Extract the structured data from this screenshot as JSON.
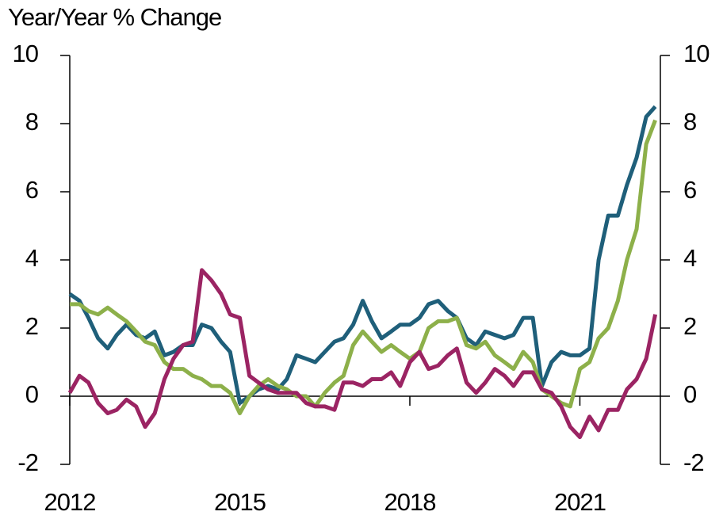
{
  "chart_data": {
    "type": "line",
    "y_label": "Year/Year % Change",
    "x": [
      2012,
      2012.17,
      2012.33,
      2012.5,
      2012.67,
      2012.83,
      2013,
      2013.17,
      2013.33,
      2013.5,
      2013.67,
      2013.83,
      2014,
      2014.17,
      2014.33,
      2014.5,
      2014.67,
      2014.83,
      2015,
      2015.17,
      2015.33,
      2015.5,
      2015.67,
      2015.83,
      2016,
      2016.17,
      2016.33,
      2016.5,
      2016.67,
      2016.83,
      2017,
      2017.17,
      2017.33,
      2017.5,
      2017.67,
      2017.83,
      2018,
      2018.17,
      2018.33,
      2018.5,
      2018.67,
      2018.83,
      2019,
      2019.17,
      2019.33,
      2019.5,
      2019.67,
      2019.83,
      2020,
      2020.17,
      2020.33,
      2020.5,
      2020.67,
      2020.83,
      2021,
      2021.17,
      2021.33,
      2021.5,
      2021.67,
      2021.83,
      2022,
      2022.17,
      2022.33
    ],
    "series": [
      {
        "color": "#1f5f7a",
        "values": [
          3.0,
          2.8,
          2.3,
          1.7,
          1.4,
          1.8,
          2.1,
          1.8,
          1.7,
          1.9,
          1.2,
          1.3,
          1.5,
          1.5,
          2.1,
          2.0,
          1.6,
          1.3,
          -0.2,
          0.0,
          0.2,
          0.3,
          0.2,
          0.5,
          1.2,
          1.1,
          1.0,
          1.3,
          1.6,
          1.7,
          2.1,
          2.8,
          2.2,
          1.7,
          1.9,
          2.1,
          2.1,
          2.3,
          2.7,
          2.8,
          2.5,
          2.3,
          1.7,
          1.5,
          1.9,
          1.8,
          1.7,
          1.8,
          2.3,
          2.3,
          0.3,
          1.0,
          1.3,
          1.2,
          1.2,
          1.4,
          4.0,
          5.3,
          5.3,
          6.2,
          7.0,
          8.2,
          8.5
        ]
      },
      {
        "color": "#8db04a",
        "values": [
          2.7,
          2.7,
          2.5,
          2.4,
          2.6,
          2.4,
          2.2,
          1.9,
          1.6,
          1.5,
          1.0,
          0.8,
          0.8,
          0.6,
          0.5,
          0.3,
          0.3,
          0.1,
          -0.5,
          0.0,
          0.3,
          0.5,
          0.3,
          0.2,
          0.0,
          0.0,
          -0.3,
          0.1,
          0.4,
          0.6,
          1.5,
          1.9,
          1.6,
          1.3,
          1.5,
          1.3,
          1.1,
          1.3,
          2.0,
          2.2,
          2.2,
          2.3,
          1.5,
          1.4,
          1.6,
          1.2,
          1.0,
          0.8,
          1.3,
          1.0,
          0.2,
          0.0,
          -0.2,
          -0.3,
          0.8,
          1.0,
          1.7,
          2.0,
          2.8,
          4.0,
          4.9,
          7.4,
          8.1
        ]
      },
      {
        "color": "#9b2463",
        "values": [
          0.1,
          0.6,
          0.4,
          -0.2,
          -0.5,
          -0.4,
          -0.1,
          -0.3,
          -0.9,
          -0.5,
          0.5,
          1.1,
          1.5,
          1.6,
          3.7,
          3.4,
          3.0,
          2.4,
          2.3,
          0.6,
          0.4,
          0.2,
          0.1,
          0.1,
          0.1,
          -0.2,
          -0.3,
          -0.3,
          -0.4,
          0.4,
          0.4,
          0.3,
          0.5,
          0.5,
          0.7,
          0.3,
          1.0,
          1.3,
          0.8,
          0.9,
          1.2,
          1.4,
          0.4,
          0.1,
          0.4,
          0.8,
          0.6,
          0.3,
          0.7,
          0.7,
          0.2,
          0.1,
          -0.3,
          -0.9,
          -1.2,
          -0.6,
          -1.0,
          -0.4,
          -0.4,
          0.2,
          0.5,
          1.1,
          2.4
        ]
      }
    ],
    "xlim": [
      2012,
      2022.42
    ],
    "xticks": [
      2012,
      2015,
      2018,
      2021
    ],
    "ylim": [
      -2,
      10
    ],
    "yticks": [
      -2,
      0,
      2,
      4,
      6,
      8,
      10
    ],
    "y2lim": [
      -2,
      10
    ],
    "y2ticks": [
      -2,
      0,
      2,
      4,
      6,
      8,
      10
    ]
  }
}
